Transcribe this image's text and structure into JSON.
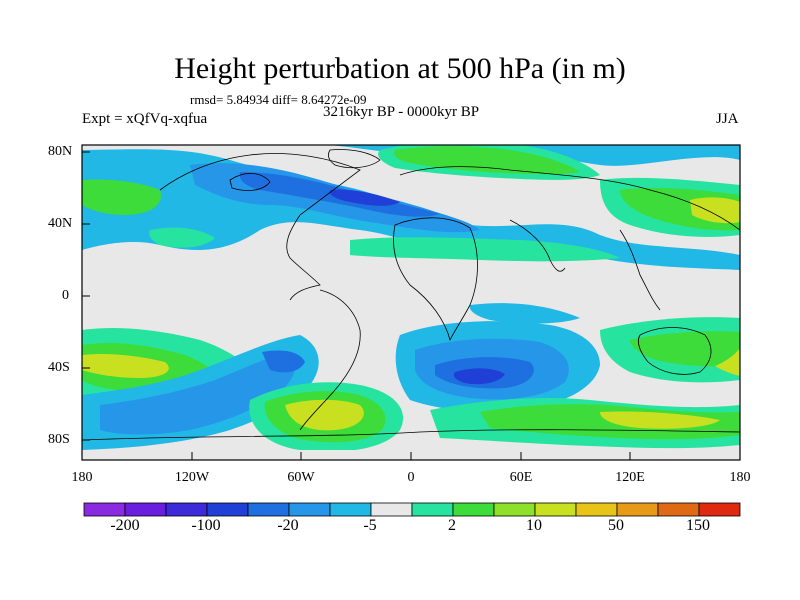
{
  "title": "Height perturbation at 500 hPa (in m)",
  "stats": "rmsd= 5.84934 diff= 8.64272e-09",
  "experiment": "Expt = xQfVq-xqfua",
  "period": "3216kyr BP - 0000kyr BP",
  "season": "JJA",
  "lat_labels": [
    "80N",
    "40N",
    "0",
    "40S",
    "80S"
  ],
  "lon_labels": [
    "180",
    "120W",
    "60W",
    "0",
    "60E",
    "120E",
    "180"
  ],
  "colorbar": {
    "labels": [
      "-200",
      "-100",
      "-20",
      "-5",
      "2",
      "10",
      "50",
      "150"
    ],
    "colors": [
      "#8a2be2",
      "#6a1fe0",
      "#3d2ad8",
      "#1f3fd6",
      "#1e6fe0",
      "#2596e8",
      "#21b8e6",
      "#e8e8e8",
      "#27e3a0",
      "#3ddc3a",
      "#8fe02a",
      "#c9e020",
      "#e8c418",
      "#e69a18",
      "#e06a14",
      "#e02a0f"
    ]
  },
  "colors": {
    "land_bg": "#e8e8e8",
    "light_blue": "#21b8e6",
    "mid_blue": "#2596e8",
    "blue": "#1e6fe0",
    "dark_blue": "#1f3fd6",
    "teal": "#27e3a0",
    "green": "#3ddc3a",
    "yellow_green": "#c9e020"
  }
}
